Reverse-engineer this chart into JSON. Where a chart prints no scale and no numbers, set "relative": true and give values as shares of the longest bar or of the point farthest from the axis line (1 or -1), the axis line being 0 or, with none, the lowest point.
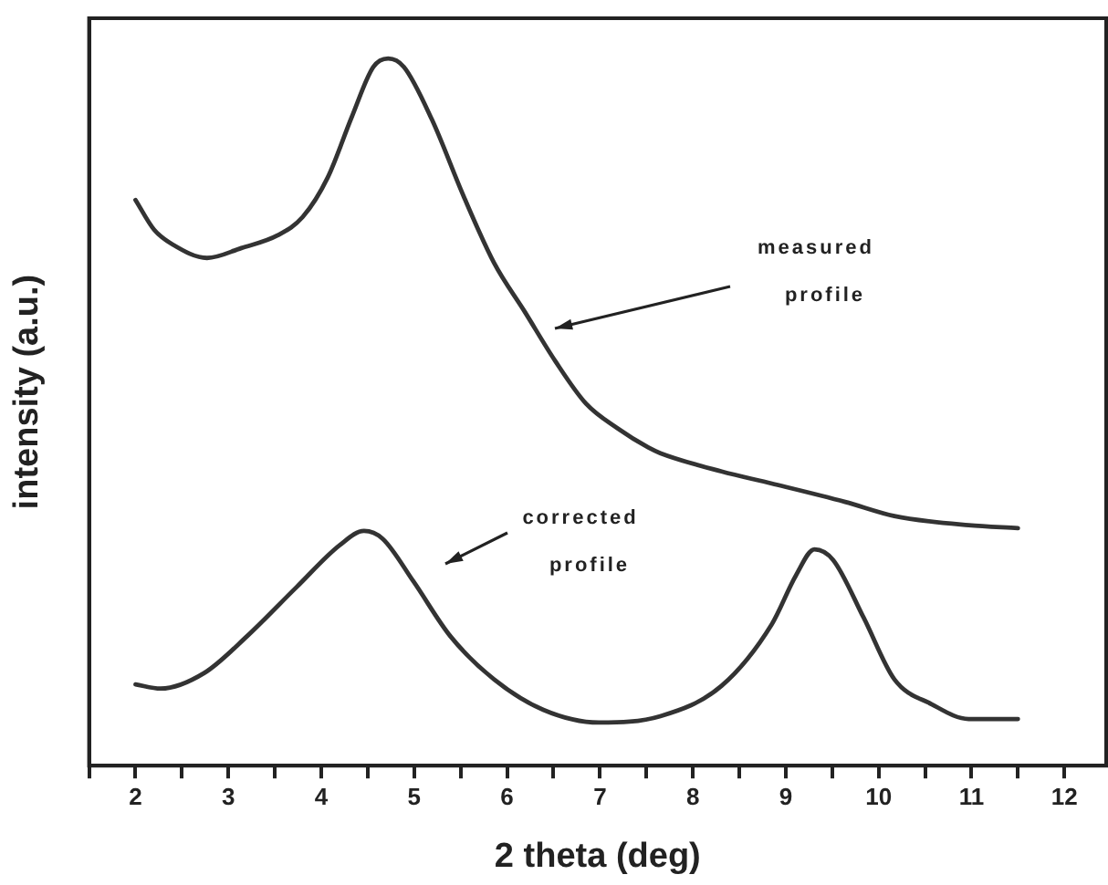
{
  "chart_data": {
    "type": "line",
    "relative": true,
    "xlabel": "2 theta (deg)",
    "ylabel": "intensity (a.u.)",
    "xlim": [
      1.5,
      12.45
    ],
    "xticks": [
      {
        "value": 1.5,
        "label": null
      },
      2,
      {
        "value": 2.5,
        "label": null
      },
      3,
      {
        "value": 3.5,
        "label": null
      },
      4,
      {
        "value": 4.5,
        "label": null
      },
      5,
      {
        "value": 5.5,
        "label": null
      },
      6,
      {
        "value": 6.5,
        "label": null
      },
      7,
      {
        "value": 7.5,
        "label": null
      },
      8,
      {
        "value": 8.5,
        "label": null
      },
      9,
      {
        "value": 9.5,
        "label": null
      },
      10,
      {
        "value": 10.5,
        "label": null
      },
      11,
      {
        "value": 11.5,
        "label": null
      },
      12
    ],
    "grid": false,
    "legend": false,
    "marker": "none",
    "line_style": "solid",
    "series": [
      {
        "color": "#333333",
        "x": [
          2.0,
          2.2,
          2.4,
          2.77,
          3.14,
          3.53,
          3.8,
          4.07,
          4.33,
          4.56,
          4.72,
          4.89,
          5.19,
          5.53,
          5.86,
          6.19,
          6.52,
          6.85,
          7.19,
          7.52,
          7.65,
          8.31,
          8.85,
          9.64,
          10.17,
          10.97,
          11.5
        ],
        "values": [
          0.8,
          0.758,
          0.737,
          0.718,
          0.732,
          0.75,
          0.776,
          0.832,
          0.918,
          0.988,
          1.0,
          0.988,
          0.914,
          0.806,
          0.711,
          0.642,
          0.572,
          0.512,
          0.477,
          0.45,
          0.442,
          0.416,
          0.399,
          0.373,
          0.353,
          0.34,
          0.336
        ]
      },
      {
        "color": "#333333",
        "x": [
          2.0,
          2.27,
          2.74,
          3.2,
          3.73,
          4.2,
          4.46,
          4.66,
          4.99,
          5.39,
          5.86,
          6.39,
          6.99,
          7.65,
          8.31,
          8.85,
          9.11,
          9.31,
          9.51,
          9.84,
          10.17,
          10.57,
          10.97,
          11.5
        ],
        "values": [
          0.115,
          0.109,
          0.131,
          0.183,
          0.252,
          0.312,
          0.332,
          0.321,
          0.261,
          0.183,
          0.122,
          0.079,
          0.061,
          0.07,
          0.113,
          0.2,
          0.269,
          0.306,
          0.291,
          0.209,
          0.122,
          0.087,
          0.066,
          0.066
        ]
      }
    ],
    "annotations": [
      "measured\nprofile",
      "corrected\nprofile"
    ]
  }
}
